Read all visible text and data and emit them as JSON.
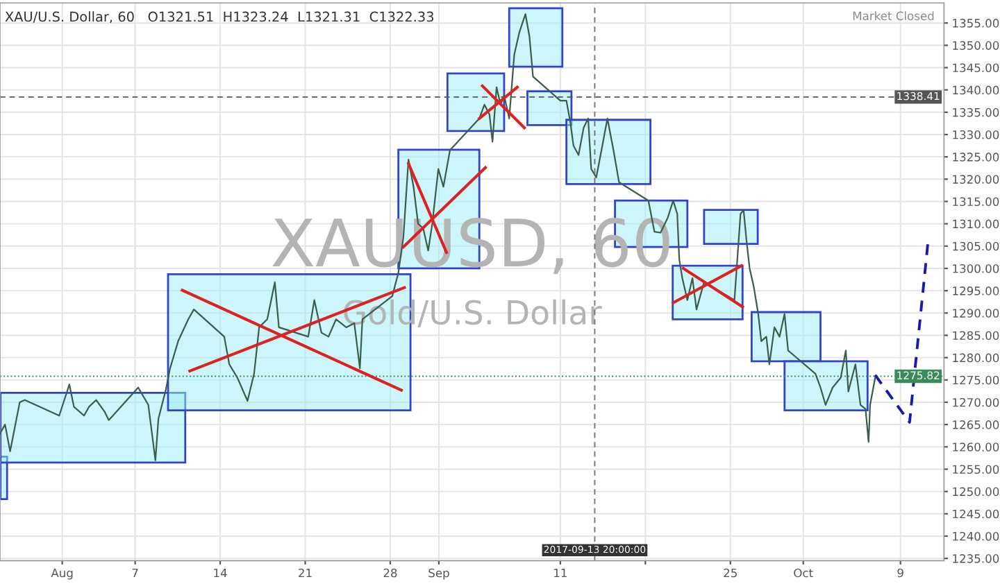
{
  "chart_data": {
    "type": "line",
    "title": "XAU/U.S. Dollar, 60   O1321.51  H1323.24  L1321.31  C1322.33",
    "annotations": [
      "Market Closed",
      "XAUUSD, 60",
      "Gold/U.S. Dollar"
    ],
    "xlim": [
      "2017-07-26T21:00",
      "2017-10-12T14:00"
    ],
    "xticks": [
      {
        "value": "2017-08-01",
        "label": "Aug"
      },
      {
        "value": "2017-08-07",
        "label": "7"
      },
      {
        "value": "2017-08-14",
        "label": "14"
      },
      {
        "value": "2017-08-21",
        "label": "21"
      },
      {
        "value": "2017-08-28",
        "label": "28"
      },
      {
        "value": "2017-09-01",
        "label": "Sep"
      },
      {
        "value": "2017-09-11",
        "label": "11"
      },
      {
        "value": "2017-09-18",
        "label": null
      },
      {
        "value": "2017-09-25",
        "label": "25"
      },
      {
        "value": "2017-10-01",
        "label": "Oct"
      },
      {
        "value": "2017-10-09",
        "label": "9"
      }
    ],
    "ylim": [
      1234.5,
      1359.5
    ],
    "yticks": [
      {
        "value": 1235,
        "label": "1235.00"
      },
      {
        "value": 1240,
        "label": "1240.00"
      },
      {
        "value": 1245,
        "label": "1245.00"
      },
      {
        "value": 1250,
        "label": "1250.00"
      },
      {
        "value": 1255,
        "label": "1255.00"
      },
      {
        "value": 1260,
        "label": "1260.00"
      },
      {
        "value": 1265,
        "label": "1265.00"
      },
      {
        "value": 1270,
        "label": "1270.00"
      },
      {
        "value": 1275,
        "label": "1275.00"
      },
      {
        "value": 1280,
        "label": "1280.00"
      },
      {
        "value": 1285,
        "label": "1285.00"
      },
      {
        "value": 1290,
        "label": "1290.00"
      },
      {
        "value": 1295,
        "label": "1295.00"
      },
      {
        "value": 1300,
        "label": "1300.00"
      },
      {
        "value": 1305,
        "label": "1305.00"
      },
      {
        "value": 1310,
        "label": "1310.00"
      },
      {
        "value": 1315,
        "label": "1315.00"
      },
      {
        "value": 1320,
        "label": "1320.00"
      },
      {
        "value": 1325,
        "label": "1325.00"
      },
      {
        "value": 1330,
        "label": "1330.00"
      },
      {
        "value": 1335,
        "label": "1335.00"
      },
      {
        "value": 1340,
        "label": "1340.00"
      },
      {
        "value": 1345,
        "label": "1345.00"
      },
      {
        "value": 1350,
        "label": "1350.00"
      },
      {
        "value": 1355,
        "label": "1355.00"
      }
    ],
    "grid": true,
    "ref_lines": [
      {
        "axis": "y",
        "value": 1338.41,
        "label": "1338.41",
        "color": "#555555",
        "line_style": "dashed"
      },
      {
        "axis": "y",
        "value": 1275.82,
        "label": "1275.82",
        "color": "#3a8a5a",
        "line_style": "dotted"
      },
      {
        "axis": "x",
        "value": "2017-09-13T20:00",
        "label": "2017-09-13 20:00:00",
        "color": "#777777",
        "line_style": "dashed"
      }
    ],
    "series": [
      {
        "type": "area",
        "color": "#3344cc",
        "x": [
          "2017-07-26T22:00",
          "2017-07-27T11:00",
          "2017-07-27T11:00",
          "2017-07-26T22:00",
          "2017-07-26T22:00"
        ],
        "values": [
          1257.8,
          1257.8,
          1248.3,
          1248.3,
          1257.8
        ]
      },
      {
        "type": "area",
        "color": "#3344cc",
        "x": [
          "2017-07-26T22:00",
          "2017-08-11T03:00",
          "2017-08-11T03:00",
          "2017-07-26T22:00",
          "2017-07-26T22:00"
        ],
        "values": [
          1272.1,
          1272.1,
          1256.5,
          1256.5,
          1272.1
        ]
      },
      {
        "type": "area",
        "color": "#3344cc",
        "x": [
          "2017-08-09T17:00",
          "2017-08-29T16:00",
          "2017-08-29T16:00",
          "2017-08-09T17:00",
          "2017-08-09T17:00"
        ],
        "values": [
          1298.7,
          1298.7,
          1268.2,
          1268.2,
          1298.7
        ]
      },
      {
        "type": "area",
        "color": "#3344cc",
        "x": [
          "2017-08-28T16:00",
          "2017-09-04T08:00",
          "2017-09-04T08:00",
          "2017-08-28T16:00",
          "2017-08-28T16:00"
        ],
        "values": [
          1326.6,
          1326.6,
          1300.0,
          1300.0,
          1326.6
        ]
      },
      {
        "type": "area",
        "color": "#3344cc",
        "x": [
          "2017-09-01T17:00",
          "2017-09-06T09:00",
          "2017-09-06T09:00",
          "2017-09-01T17:00",
          "2017-09-01T17:00"
        ],
        "values": [
          1343.7,
          1343.7,
          1330.8,
          1330.8,
          1343.7
        ]
      },
      {
        "type": "area",
        "color": "#3344cc",
        "x": [
          "2017-09-06T19:00",
          "2017-09-11T04:00",
          "2017-09-11T04:00",
          "2017-09-06T19:00",
          "2017-09-06T19:00"
        ],
        "values": [
          1358.3,
          1358.3,
          1345.2,
          1345.2,
          1358.3
        ]
      },
      {
        "type": "area",
        "color": "#3344cc",
        "x": [
          "2017-09-08T07:00",
          "2017-09-11T22:00",
          "2017-09-11T22:00",
          "2017-09-08T07:00",
          "2017-09-08T07:00"
        ],
        "values": [
          1339.7,
          1339.7,
          1332.1,
          1332.1,
          1339.7
        ]
      },
      {
        "type": "area",
        "color": "#3344cc",
        "x": [
          "2017-09-11T12:00",
          "2017-09-18T10:00",
          "2017-09-18T10:00",
          "2017-09-11T12:00",
          "2017-09-11T12:00"
        ],
        "values": [
          1333.3,
          1333.3,
          1318.9,
          1318.9,
          1333.3
        ]
      },
      {
        "type": "area",
        "color": "#3344cc",
        "x": [
          "2017-09-15T12:00",
          "2017-09-21T11:00",
          "2017-09-21T11:00",
          "2017-09-15T12:00",
          "2017-09-15T12:00"
        ],
        "values": [
          1315.2,
          1315.2,
          1304.8,
          1304.8,
          1315.2
        ]
      },
      {
        "type": "area",
        "color": "#3344cc",
        "x": [
          "2017-09-20T06:00",
          "2017-09-26T00:00",
          "2017-09-26T00:00",
          "2017-09-20T06:00",
          "2017-09-20T06:00"
        ],
        "values": [
          1300.6,
          1300.6,
          1288.6,
          1288.6,
          1300.6
        ]
      },
      {
        "type": "area",
        "color": "#3344cc",
        "x": [
          "2017-09-22T20:00",
          "2017-09-27T06:00",
          "2017-09-27T06:00",
          "2017-09-22T20:00",
          "2017-09-22T20:00"
        ],
        "values": [
          1313.1,
          1313.1,
          1305.5,
          1305.5,
          1313.1
        ]
      },
      {
        "type": "area",
        "color": "#3344cc",
        "x": [
          "2017-09-26T18:00",
          "2017-10-02T10:00",
          "2017-10-02T10:00",
          "2017-09-26T18:00",
          "2017-09-26T18:00"
        ],
        "values": [
          1290.2,
          1290.2,
          1279.2,
          1279.2,
          1290.2
        ]
      },
      {
        "type": "area",
        "color": "#3344cc",
        "x": [
          "2017-09-29T11:00",
          "2017-10-06T07:00",
          "2017-10-06T07:00",
          "2017-09-29T11:00",
          "2017-09-29T11:00"
        ],
        "values": [
          1279.2,
          1279.2,
          1268.2,
          1268.2,
          1279.2
        ]
      },
      {
        "color": "#3d5c4c",
        "x": [
          "2017-07-26T21:00",
          "2017-07-27T07:00",
          "2017-07-27T17:00",
          "2017-07-28T12:00",
          "2017-07-28T22:00",
          "2017-07-31T18:00",
          "2017-08-01T14:00",
          "2017-08-01T23:00",
          "2017-08-02T19:00",
          "2017-08-03T05:00",
          "2017-08-03T19:00",
          "2017-08-04T11:00",
          "2017-08-04T20:00",
          "2017-08-07T06:00",
          "2017-08-08T02:00",
          "2017-08-08T16:00",
          "2017-08-08T22:00",
          "2017-08-09T13:00",
          "2017-08-09T21:00",
          "2017-08-10T13:00",
          "2017-08-11T09:00",
          "2017-08-11T20:00",
          "2017-08-14T08:00",
          "2017-08-14T18:00",
          "2017-08-15T10:00",
          "2017-08-16T06:00",
          "2017-08-16T19:00",
          "2017-08-17T05:00",
          "2017-08-17T21:00",
          "2017-08-18T12:00",
          "2017-08-18T20:00",
          "2017-08-21T06:00",
          "2017-08-21T18:00",
          "2017-08-22T08:00",
          "2017-08-22T22:00",
          "2017-08-23T13:00",
          "2017-08-24T09:00",
          "2017-08-25T01:00",
          "2017-08-25T12:00",
          "2017-08-25T17:00",
          "2017-08-28T04:00",
          "2017-08-28T16:00",
          "2017-08-29T02:00",
          "2017-08-29T12:00",
          "2017-08-29T22:00",
          "2017-08-30T07:00",
          "2017-08-30T17:00",
          "2017-08-31T03:00",
          "2017-08-31T11:00",
          "2017-08-31T23:00",
          "2017-09-01T09:00",
          "2017-09-01T22:00",
          "2017-09-04T08:00",
          "2017-09-04T18:00",
          "2017-09-05T04:00",
          "2017-09-05T10:00",
          "2017-09-05T18:00",
          "2017-09-06T02:00",
          "2017-09-06T09:00",
          "2017-09-06T19:00",
          "2017-09-07T05:00",
          "2017-09-07T15:00",
          "2017-09-08T03:00",
          "2017-09-08T11:00",
          "2017-09-08T18:00",
          "2017-09-11T00:00",
          "2017-09-11T12:00",
          "2017-09-11T20:00",
          "2017-09-12T02:00",
          "2017-09-12T12:00",
          "2017-09-12T22:00",
          "2017-09-13T07:00",
          "2017-09-13T13:00",
          "2017-09-13T23:00",
          "2017-09-14T11:00",
          "2017-09-14T21:00",
          "2017-09-15T09:00",
          "2017-09-15T20:00",
          "2017-09-18T06:00",
          "2017-09-18T18:00",
          "2017-09-19T06:00",
          "2017-09-19T20:00",
          "2017-09-20T07:00",
          "2017-09-20T15:00",
          "2017-09-20T19:00",
          "2017-09-21T01:00",
          "2017-09-21T11:00",
          "2017-09-21T21:00",
          "2017-09-22T05:00",
          "2017-09-22T20:00",
          "2017-09-25T08:00",
          "2017-09-25T20:00",
          "2017-09-26T02:00",
          "2017-09-26T08:00",
          "2017-09-26T14:00",
          "2017-09-26T22:00",
          "2017-09-27T07:00",
          "2017-09-27T13:00",
          "2017-09-27T23:00",
          "2017-09-28T05:00",
          "2017-09-28T15:00",
          "2017-09-29T01:00",
          "2017-09-29T11:00",
          "2017-09-29T18:00",
          "2017-10-02T00:00",
          "2017-10-02T10:00",
          "2017-10-02T20:00",
          "2017-10-03T10:00",
          "2017-10-04T02:00",
          "2017-10-04T12:00",
          "2017-10-04T17:00",
          "2017-10-05T07:00",
          "2017-10-05T17:00",
          "2017-10-06T03:00",
          "2017-10-06T09:00",
          "2017-10-06T12:00",
          "2017-10-06T22:00"
        ],
        "values": [
          1263,
          1265,
          1259,
          1270,
          1270.5,
          1267,
          1274,
          1269,
          1267,
          1269,
          1270.5,
          1268,
          1266,
          1273.3,
          1269.4,
          1257,
          1266.3,
          1273,
          1277.6,
          1283.7,
          1288.6,
          1290.8,
          1284.7,
          1278.5,
          1275.5,
          1270.3,
          1276.4,
          1286.8,
          1288.6,
          1296.9,
          1286.8,
          1284.7,
          1292.9,
          1285.6,
          1284.7,
          1288.6,
          1286.8,
          1287.7,
          1277.6,
          1288.6,
          1293.8,
          1299,
          1307,
          1324.4,
          1318.3,
          1310,
          1309,
          1304,
          1310,
          1322.3,
          1318.3,
          1326.5,
          1333.6,
          1336.7,
          1334.5,
          1328.4,
          1340.6,
          1336.7,
          1338.8,
          1333.6,
          1347.9,
          1352.9,
          1357,
          1352,
          1343,
          1337.6,
          1337.6,
          1332.6,
          1327.5,
          1325.4,
          1331.5,
          1333.6,
          1322.3,
          1320.4,
          1327.5,
          1333.6,
          1326.5,
          1319.3,
          1315.2,
          1308.2,
          1308,
          1311.3,
          1315.2,
          1312.2,
          1302,
          1297.8,
          1292.9,
          1297.8,
          1290.8,
          1296.9,
          1292.9,
          1312.2,
          1313.1,
          1306,
          1300,
          1296,
          1289.8,
          1283.7,
          1284.7,
          1278.5,
          1286.8,
          1284.7,
          1289.8,
          1281.6,
          1276.4,
          1273.3,
          1269.4,
          1273.3,
          1275.5,
          1281.6,
          1272.4,
          1278.5,
          1269.4,
          1268.5,
          1261.1,
          1269.4,
          1275.5
        ]
      },
      {
        "type": "line",
        "color": "#dd2222",
        "x": [
          "2017-08-10T21:00",
          "2017-08-28T22:00"
        ],
        "values": [
          1295.1,
          1272.7
        ]
      },
      {
        "type": "line",
        "color": "#dd2222",
        "x": [
          "2017-08-11T12:00",
          "2017-08-29T04:00"
        ],
        "values": [
          1277.0,
          1295.7
        ]
      },
      {
        "type": "line",
        "color": "#dd2222",
        "x": [
          "2017-08-29T12:00",
          "2017-09-01T15:00"
        ],
        "values": [
          1323.5,
          1303.6
        ]
      },
      {
        "type": "line",
        "color": "#dd2222",
        "x": [
          "2017-08-29T02:00",
          "2017-09-04T20:00"
        ],
        "values": [
          1304.8,
          1322.6
        ]
      },
      {
        "type": "line",
        "color": "#dd2222",
        "x": [
          "2017-09-04T14:00",
          "2017-09-08T01:00"
        ],
        "values": [
          1340.9,
          1331.5
        ]
      },
      {
        "type": "line",
        "color": "#dd2222",
        "x": [
          "2017-09-04T08:00",
          "2017-09-07T11:00"
        ],
        "values": [
          1333.6,
          1340.6
        ]
      },
      {
        "type": "line",
        "color": "#dd2222",
        "x": [
          "2017-09-21T03:00",
          "2017-09-26T00:00"
        ],
        "values": [
          1300.0,
          1291.4
        ]
      },
      {
        "type": "line",
        "color": "#dd2222",
        "x": [
          "2017-09-20T07:00",
          "2017-09-25T22:00"
        ],
        "values": [
          1292.3,
          1300.6
        ]
      },
      {
        "type": "line",
        "color": "#1a1aaa",
        "line_style": "dashed",
        "x": [
          "2017-10-06T22:00",
          "2017-10-09T18:00",
          "2017-10-11T06:00"
        ],
        "values": [
          1276.1,
          1265.5,
          1305.5
        ]
      }
    ]
  }
}
